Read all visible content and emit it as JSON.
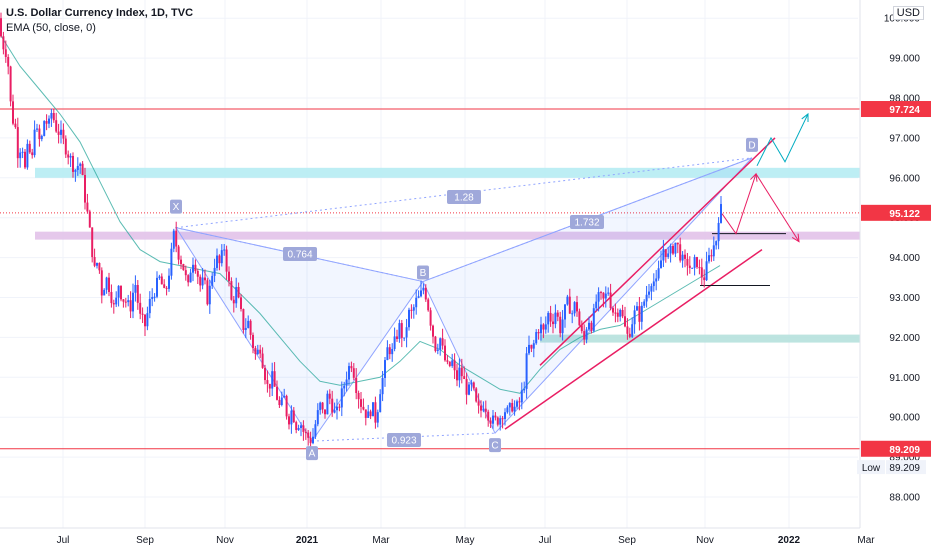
{
  "header": {
    "title": "U.S. Dollar Currency Index, 1D, TVC",
    "indicator": "EMA (50, close, 0)",
    "currency": "USD"
  },
  "chart_data": {
    "type": "candlestick",
    "y_ticks": [
      88,
      89,
      90,
      91,
      92,
      93,
      94,
      95,
      96,
      97,
      98,
      99,
      100
    ],
    "y_tick_labels": [
      "88.000",
      "89.000",
      "90.000",
      "91.000",
      "92.000",
      "93.000",
      "94.000",
      "95.000",
      "96.000",
      "97.000",
      "98.000",
      "99.000",
      "100.000"
    ],
    "ylim": [
      87.2,
      100.4
    ],
    "x_ticks": [
      "Jul",
      "Sep",
      "Nov",
      "2021",
      "Mar",
      "May",
      "Jul",
      "Sep",
      "Nov",
      "2022",
      "Mar"
    ],
    "price_labels": [
      {
        "text": "97.724",
        "value": 97.724,
        "color": "#f23645"
      },
      {
        "text": "95.122",
        "value": 95.122,
        "color": "#f23645"
      },
      {
        "text": "89.209",
        "value": 89.209,
        "color": "#f23645"
      }
    ],
    "low_label": {
      "text": "Low",
      "value": "89.209"
    },
    "horizontal_lines": [
      {
        "value": 97.724,
        "style": "solid",
        "color": "#f23645"
      },
      {
        "value": 95.122,
        "style": "dotted",
        "color": "#f23645"
      },
      {
        "value": 89.209,
        "style": "solid",
        "color": "#f23645"
      }
    ],
    "zones": [
      {
        "from": 96.0,
        "to": 96.25,
        "color": "#b2ebf2",
        "start": "Jun 2020"
      },
      {
        "from": 94.45,
        "to": 94.65,
        "color": "#e1bee7",
        "start": "Jun 2020"
      },
      {
        "from": 91.87,
        "to": 92.07,
        "color": "#b2dfdb",
        "start": "Jul 2021"
      }
    ],
    "pattern_points": [
      {
        "label": "X",
        "value": 94.75
      },
      {
        "label": "A",
        "value": 89.4
      },
      {
        "label": "B",
        "value": 93.4
      },
      {
        "label": "C",
        "value": 89.6
      },
      {
        "label": "D",
        "value": 96.5
      }
    ],
    "ratios": [
      "0.764",
      "0.923",
      "1.28",
      "1.732"
    ],
    "channel": {
      "upper": [
        [
          91.3,
          "Jul 2021"
        ],
        [
          97.0,
          "Dec 2021"
        ]
      ],
      "lower": [
        [
          89.7,
          "Jun 2021"
        ],
        [
          94.2,
          "Dec 2021"
        ]
      ]
    },
    "ema_label": "EMA 50",
    "price_path": [
      [
        0,
        100.0
      ],
      [
        2,
        99.1
      ],
      [
        4,
        99.4
      ],
      [
        8,
        98.9
      ],
      [
        12,
        97.3
      ],
      [
        14,
        97.6
      ],
      [
        18,
        96.6
      ],
      [
        22,
        96.9
      ],
      [
        25,
        96.2
      ],
      [
        28,
        96.8
      ],
      [
        32,
        96.4
      ],
      [
        35,
        97.5
      ],
      [
        38,
        96.9
      ],
      [
        42,
        97.0
      ],
      [
        45,
        97.6
      ],
      [
        48,
        97.2
      ],
      [
        52,
        97.7
      ],
      [
        55,
        97.3
      ],
      [
        60,
        97.1
      ],
      [
        65,
        96.8
      ],
      [
        70,
        96.5
      ],
      [
        75,
        96.2
      ],
      [
        80,
        96.4
      ],
      [
        85,
        95.5
      ],
      [
        88,
        95.0
      ],
      [
        92,
        94.2
      ],
      [
        95,
        93.6
      ],
      [
        98,
        94.0
      ],
      [
        102,
        93.1
      ],
      [
        106,
        93.5
      ],
      [
        110,
        93.2
      ],
      [
        115,
        92.6
      ],
      [
        118,
        93.4
      ],
      [
        122,
        93.0
      ],
      [
        126,
        92.9
      ],
      [
        130,
        92.7
      ],
      [
        135,
        93.4
      ],
      [
        140,
        92.5
      ],
      [
        145,
        92.3
      ],
      [
        150,
        92.9
      ],
      [
        155,
        93.2
      ],
      [
        160,
        93.5
      ],
      [
        165,
        93.0
      ],
      [
        170,
        93.8
      ],
      [
        174,
        94.6
      ],
      [
        177,
        94.2
      ],
      [
        180,
        94.0
      ],
      [
        184,
        93.7
      ],
      [
        188,
        93.2
      ],
      [
        192,
        94.0
      ],
      [
        196,
        93.8
      ],
      [
        200,
        93.3
      ],
      [
        204,
        93.4
      ],
      [
        208,
        92.9
      ],
      [
        212,
        93.6
      ],
      [
        216,
        94.0
      ],
      [
        220,
        93.8
      ],
      [
        224,
        94.3
      ],
      [
        228,
        93.5
      ],
      [
        232,
        92.8
      ],
      [
        236,
        93.2
      ],
      [
        240,
        92.7
      ],
      [
        244,
        92.2
      ],
      [
        248,
        92.4
      ],
      [
        252,
        91.9
      ],
      [
        256,
        91.5
      ],
      [
        260,
        91.8
      ],
      [
        264,
        91.2
      ],
      [
        268,
        90.7
      ],
      [
        272,
        91.0
      ],
      [
        276,
        90.6
      ],
      [
        280,
        90.2
      ],
      [
        284,
        90.5
      ],
      [
        288,
        89.9
      ],
      [
        292,
        90.2
      ],
      [
        296,
        89.8
      ],
      [
        300,
        89.9
      ],
      [
        304,
        89.6
      ],
      [
        308,
        89.5
      ],
      [
        312,
        89.4
      ],
      [
        316,
        89.9
      ],
      [
        320,
        90.3
      ],
      [
        324,
        90.0
      ],
      [
        328,
        90.6
      ],
      [
        332,
        90.3
      ],
      [
        336,
        90.0
      ],
      [
        340,
        90.4
      ],
      [
        344,
        90.8
      ],
      [
        348,
        91.2
      ],
      [
        352,
        91.4
      ],
      [
        356,
        90.8
      ],
      [
        360,
        90.4
      ],
      [
        364,
        90.2
      ],
      [
        368,
        90.0
      ],
      [
        372,
        90.3
      ],
      [
        376,
        89.9
      ],
      [
        380,
        90.7
      ],
      [
        384,
        91.1
      ],
      [
        388,
        91.8
      ],
      [
        392,
        91.6
      ],
      [
        396,
        92.0
      ],
      [
        400,
        92.3
      ],
      [
        404,
        91.8
      ],
      [
        408,
        92.6
      ],
      [
        412,
        92.6
      ],
      [
        416,
        92.9
      ],
      [
        420,
        93.0
      ],
      [
        424,
        93.3
      ],
      [
        428,
        92.8
      ],
      [
        432,
        92.2
      ],
      [
        436,
        91.7
      ],
      [
        440,
        92.0
      ],
      [
        444,
        91.5
      ],
      [
        448,
        91.2
      ],
      [
        452,
        91.4
      ],
      [
        456,
        90.9
      ],
      [
        460,
        91.2
      ],
      [
        464,
        90.9
      ],
      [
        468,
        90.6
      ],
      [
        472,
        90.8
      ],
      [
        476,
        90.3
      ],
      [
        480,
        90.1
      ],
      [
        484,
        90.4
      ],
      [
        488,
        90.1
      ],
      [
        492,
        89.9
      ],
      [
        496,
        89.9
      ],
      [
        500,
        90.0
      ],
      [
        504,
        90.2
      ],
      [
        508,
        90.1
      ],
      [
        512,
        90.3
      ],
      [
        516,
        90.2
      ],
      [
        520,
        90.4
      ],
      [
        524,
        90.8
      ],
      [
        528,
        91.8
      ],
      [
        532,
        91.6
      ],
      [
        536,
        92.1
      ],
      [
        540,
        92.3
      ],
      [
        544,
        92.1
      ],
      [
        548,
        92.6
      ],
      [
        552,
        92.4
      ],
      [
        556,
        92.7
      ],
      [
        560,
        92.2
      ],
      [
        564,
        92.6
      ],
      [
        568,
        92.9
      ],
      [
        572,
        92.6
      ],
      [
        576,
        92.9
      ],
      [
        580,
        92.2
      ],
      [
        584,
        91.9
      ],
      [
        588,
        92.5
      ],
      [
        592,
        92.3
      ],
      [
        596,
        92.9
      ],
      [
        600,
        93.0
      ],
      [
        604,
        92.9
      ],
      [
        608,
        93.2
      ],
      [
        612,
        92.7
      ],
      [
        616,
        92.6
      ],
      [
        620,
        92.8
      ],
      [
        624,
        92.3
      ],
      [
        628,
        92.0
      ],
      [
        632,
        92.4
      ],
      [
        636,
        92.7
      ],
      [
        640,
        92.5
      ],
      [
        644,
        92.9
      ],
      [
        648,
        93.2
      ],
      [
        652,
        93.5
      ],
      [
        656,
        93.3
      ],
      [
        660,
        93.8
      ],
      [
        664,
        94.3
      ],
      [
        668,
        94.0
      ],
      [
        672,
        94.2
      ],
      [
        676,
        94.4
      ],
      [
        680,
        94.1
      ],
      [
        684,
        93.8
      ],
      [
        688,
        93.9
      ],
      [
        692,
        93.6
      ],
      [
        696,
        94.0
      ],
      [
        700,
        93.6
      ],
      [
        704,
        93.5
      ],
      [
        708,
        93.9
      ],
      [
        712,
        94.2
      ],
      [
        716,
        94.4
      ],
      [
        718,
        95.0
      ],
      [
        721,
        95.2
      ]
    ],
    "ema_path": [
      [
        0,
        99.6
      ],
      [
        20,
        98.8
      ],
      [
        40,
        98.2
      ],
      [
        60,
        97.6
      ],
      [
        80,
        96.9
      ],
      [
        100,
        95.9
      ],
      [
        120,
        94.9
      ],
      [
        140,
        94.2
      ],
      [
        160,
        93.9
      ],
      [
        180,
        93.8
      ],
      [
        200,
        93.7
      ],
      [
        220,
        93.6
      ],
      [
        240,
        93.1
      ],
      [
        260,
        92.6
      ],
      [
        280,
        92.0
      ],
      [
        300,
        91.4
      ],
      [
        320,
        90.9
      ],
      [
        340,
        90.8
      ],
      [
        360,
        90.9
      ],
      [
        380,
        91.0
      ],
      [
        400,
        91.4
      ],
      [
        420,
        91.9
      ],
      [
        440,
        91.7
      ],
      [
        460,
        91.3
      ],
      [
        480,
        91.0
      ],
      [
        500,
        90.7
      ],
      [
        520,
        90.6
      ],
      [
        540,
        91.2
      ],
      [
        560,
        91.7
      ],
      [
        580,
        92.0
      ],
      [
        600,
        92.2
      ],
      [
        620,
        92.3
      ],
      [
        640,
        92.6
      ],
      [
        660,
        92.9
      ],
      [
        680,
        93.2
      ],
      [
        700,
        93.5
      ],
      [
        720,
        93.8
      ]
    ]
  }
}
